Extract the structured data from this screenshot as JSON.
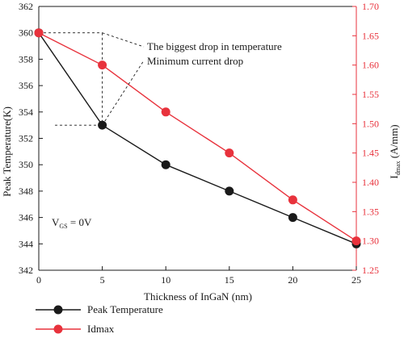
{
  "chart_data": {
    "type": "line",
    "x": [
      0,
      5,
      10,
      15,
      20,
      25
    ],
    "xlabel": "Thickness of InGaN (nm)",
    "xlim": [
      0,
      25
    ],
    "x_ticks": [
      0,
      5,
      10,
      15,
      20,
      25
    ],
    "ylabel_left": "Peak Temperature(K)",
    "ylim_left": [
      342,
      362
    ],
    "y_ticks_left": [
      342,
      344,
      346,
      348,
      350,
      352,
      354,
      356,
      358,
      360,
      362
    ],
    "ylabel_right_main": "I",
    "ylabel_right_sub": "dmax",
    "ylabel_right_unit": " (A/mm)",
    "ylim_right": [
      1.25,
      1.7
    ],
    "y_ticks_right": [
      "1.25",
      "1.30",
      "1.35",
      "1.40",
      "1.45",
      "1.50",
      "1.55",
      "1.60",
      "1.65",
      "1.70"
    ],
    "series": [
      {
        "name": "Peak Temperature",
        "axis": "left",
        "color": "#1a1a1a",
        "values": [
          360,
          353,
          350,
          348,
          346,
          344
        ]
      },
      {
        "name": "Idmax",
        "axis": "right",
        "color": "#e8323c",
        "values": [
          1.655,
          1.6,
          1.52,
          1.45,
          1.37,
          1.3
        ]
      }
    ],
    "annotations": [
      "The biggest drop in temperature",
      "Minimum current drop"
    ],
    "inline_label": {
      "main": "V",
      "sub": "GS",
      "rest": " = 0V"
    },
    "axis_colors": {
      "left": "#1a1a1a",
      "right": "#e8323c"
    },
    "legend_position": "bottom-left"
  }
}
